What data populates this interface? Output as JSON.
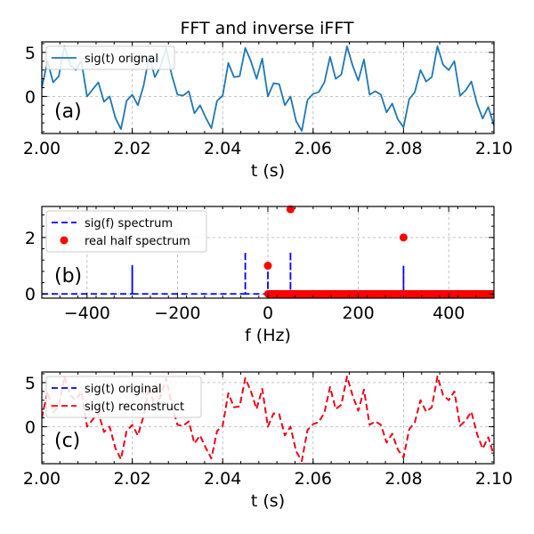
{
  "title": "FFT and inverse iFFT",
  "chart_data": [
    {
      "id": "a",
      "type": "line",
      "panel_label": "(a)",
      "xlabel": "t (s)",
      "ylabel": "",
      "xlim": [
        2.0,
        2.1
      ],
      "ylim": [
        -4.2,
        6.2
      ],
      "xticks": [
        2.0,
        2.02,
        2.04,
        2.06,
        2.08,
        2.1
      ],
      "xtick_labels": [
        "2.00",
        "2.02",
        "2.04",
        "2.06",
        "2.08",
        "2.10"
      ],
      "yticks": [
        0,
        5
      ],
      "ytick_labels": [
        "0",
        "5"
      ],
      "grid": true,
      "legend_position": "upper-left",
      "series": [
        {
          "name": "sig(t) orignal",
          "color": "#1f77b4",
          "dash": "solid",
          "x": [
            2.0,
            2.00125,
            2.0025,
            2.00375,
            2.005,
            2.00625,
            2.0075,
            2.00875,
            2.01,
            2.01125,
            2.0125,
            2.01375,
            2.015,
            2.01625,
            2.0175,
            2.01875,
            2.02,
            2.02125,
            2.0225,
            2.02375,
            2.025,
            2.02625,
            2.0275,
            2.02875,
            2.03,
            2.03125,
            2.0325,
            2.03375,
            2.035,
            2.03625,
            2.0375,
            2.03875,
            2.04,
            2.04125,
            2.0425,
            2.04375,
            2.045,
            2.04625,
            2.0475,
            2.04875,
            2.05,
            2.05125,
            2.0525,
            2.05375,
            2.055,
            2.05625,
            2.0575,
            2.05875,
            2.06,
            2.06125,
            2.0625,
            2.06375,
            2.065,
            2.06625,
            2.0675,
            2.06875,
            2.07,
            2.07125,
            2.0725,
            2.07375,
            2.075,
            2.07625,
            2.0775,
            2.07875,
            2.08,
            2.08125,
            2.0825,
            2.08375,
            2.085,
            2.08625,
            2.0875,
            2.08875,
            2.09,
            2.09125,
            2.0925,
            2.09375,
            2.095,
            2.09625,
            2.0975,
            2.09875,
            2.1
          ],
          "y": [
            1.0,
            4.0,
            1.6,
            2.3,
            5.7,
            3.6,
            3.0,
            4.0,
            0.0,
            0.8,
            1.6,
            -0.6,
            0.0,
            -2.4,
            -3.7,
            -0.5,
            0.2,
            -1.0,
            1.2,
            4.6,
            2.2,
            3.4,
            5.5,
            2.4,
            0.2,
            0.1,
            0.6,
            -1.9,
            -1.0,
            -2.4,
            -3.6,
            -0.5,
            0.1,
            3.8,
            2.2,
            2.3,
            5.5,
            4.0,
            2.0,
            4.3,
            0.0,
            1.5,
            1.4,
            -1.0,
            0.0,
            -2.8,
            -3.9,
            -0.4,
            0.3,
            0.5,
            1.6,
            4.5,
            2.0,
            2.5,
            5.7,
            3.5,
            1.8,
            4.2,
            0.2,
            0.6,
            0.2,
            -1.8,
            -0.8,
            -2.6,
            -3.5,
            -0.3,
            0.5,
            3.0,
            1.7,
            2.2,
            5.7,
            3.6,
            3.0,
            4.0,
            0.1,
            0.7,
            1.7,
            -0.8,
            -2.5,
            -1.2,
            -3.3
          ]
        }
      ]
    },
    {
      "id": "b",
      "type": "spectrum",
      "panel_label": "(b)",
      "xlabel": "f (Hz)",
      "ylabel": "",
      "xlim": [
        -500,
        500
      ],
      "ylim": [
        -0.15,
        3.1
      ],
      "xticks": [
        -400,
        -200,
        0,
        200,
        400
      ],
      "xtick_labels": [
        "−400",
        "−200",
        "0",
        "200",
        "400"
      ],
      "yticks": [
        0,
        2
      ],
      "ytick_labels": [
        "0",
        "2"
      ],
      "grid": true,
      "legend_position": "upper-left",
      "series": [
        {
          "name": "sig(f) spectrum",
          "color": "#0000ff",
          "dash": "dashed",
          "x": [
            -500,
            -300,
            -300,
            -300,
            -50,
            -50,
            -50,
            0,
            0,
            0,
            50,
            50,
            50,
            300,
            300,
            300,
            500
          ],
          "y": [
            0,
            0,
            1.0,
            0,
            0,
            1.5,
            0,
            0,
            1.0,
            0,
            0,
            1.5,
            0,
            0,
            1.0,
            0,
            0
          ]
        },
        {
          "name": "real half spectrum",
          "color": "#ff0000",
          "marker": "circle",
          "points": [
            {
              "x": 0,
              "y": 1.0
            },
            {
              "x": 50,
              "y": 3.0
            },
            {
              "x": 300,
              "y": 2.0
            }
          ],
          "baseline_range": [
            0,
            500
          ],
          "baseline_step": 2
        }
      ]
    },
    {
      "id": "c",
      "type": "line",
      "panel_label": "(c)",
      "xlabel": "t (s)",
      "ylabel": "",
      "xlim": [
        2.0,
        2.1
      ],
      "ylim": [
        -4.2,
        6.2
      ],
      "xticks": [
        2.0,
        2.02,
        2.04,
        2.06,
        2.08,
        2.1
      ],
      "xtick_labels": [
        "2.00",
        "2.02",
        "2.04",
        "2.06",
        "2.08",
        "2.10"
      ],
      "yticks": [
        0,
        5
      ],
      "ytick_labels": [
        "0",
        "5"
      ],
      "grid": true,
      "legend_position": "upper-left",
      "series": [
        {
          "name": "sig(t) original",
          "color": "#0000ff",
          "dash": "dashed",
          "x": [
            2.0,
            2.00125,
            2.0025,
            2.00375,
            2.005,
            2.00625,
            2.0075,
            2.00875,
            2.01,
            2.01125,
            2.0125,
            2.01375,
            2.015,
            2.01625,
            2.0175,
            2.01875,
            2.02,
            2.02125,
            2.0225,
            2.02375,
            2.025,
            2.02625,
            2.0275,
            2.02875,
            2.03,
            2.03125,
            2.0325,
            2.03375,
            2.035,
            2.03625,
            2.0375,
            2.03875,
            2.04,
            2.04125,
            2.0425,
            2.04375,
            2.045,
            2.04625,
            2.0475,
            2.04875,
            2.05,
            2.05125,
            2.0525,
            2.05375,
            2.055,
            2.05625,
            2.0575,
            2.05875,
            2.06,
            2.06125,
            2.0625,
            2.06375,
            2.065,
            2.06625,
            2.0675,
            2.06875,
            2.07,
            2.07125,
            2.0725,
            2.07375,
            2.075,
            2.07625,
            2.0775,
            2.07875,
            2.08,
            2.08125,
            2.0825,
            2.08375,
            2.085,
            2.08625,
            2.0875,
            2.08875,
            2.09,
            2.09125,
            2.0925,
            2.09375,
            2.095,
            2.09625,
            2.0975,
            2.09875,
            2.1
          ],
          "y": [
            1.0,
            4.0,
            1.6,
            2.3,
            5.7,
            3.6,
            3.0,
            4.0,
            0.0,
            0.8,
            1.6,
            -0.6,
            0.0,
            -2.4,
            -3.7,
            -0.5,
            0.2,
            -1.0,
            1.2,
            4.6,
            2.2,
            3.4,
            5.5,
            2.4,
            0.2,
            0.1,
            0.6,
            -1.9,
            -1.0,
            -2.4,
            -3.6,
            -0.5,
            0.1,
            3.8,
            2.2,
            2.3,
            5.5,
            4.0,
            2.0,
            4.3,
            0.0,
            1.5,
            1.4,
            -1.0,
            0.0,
            -2.8,
            -3.9,
            -0.4,
            0.3,
            0.5,
            1.6,
            4.5,
            2.0,
            2.5,
            5.7,
            3.5,
            1.8,
            4.2,
            0.2,
            0.6,
            0.2,
            -1.8,
            -0.8,
            -2.6,
            -3.5,
            -0.3,
            0.5,
            3.0,
            1.7,
            2.2,
            5.7,
            3.6,
            3.0,
            4.0,
            0.1,
            0.7,
            1.7,
            -0.8,
            -2.5,
            -1.2,
            -3.3
          ]
        },
        {
          "name": "sig(t) reconstruct",
          "color": "#ff0000",
          "dash": "dashed",
          "same_as_series": 0
        }
      ]
    }
  ]
}
